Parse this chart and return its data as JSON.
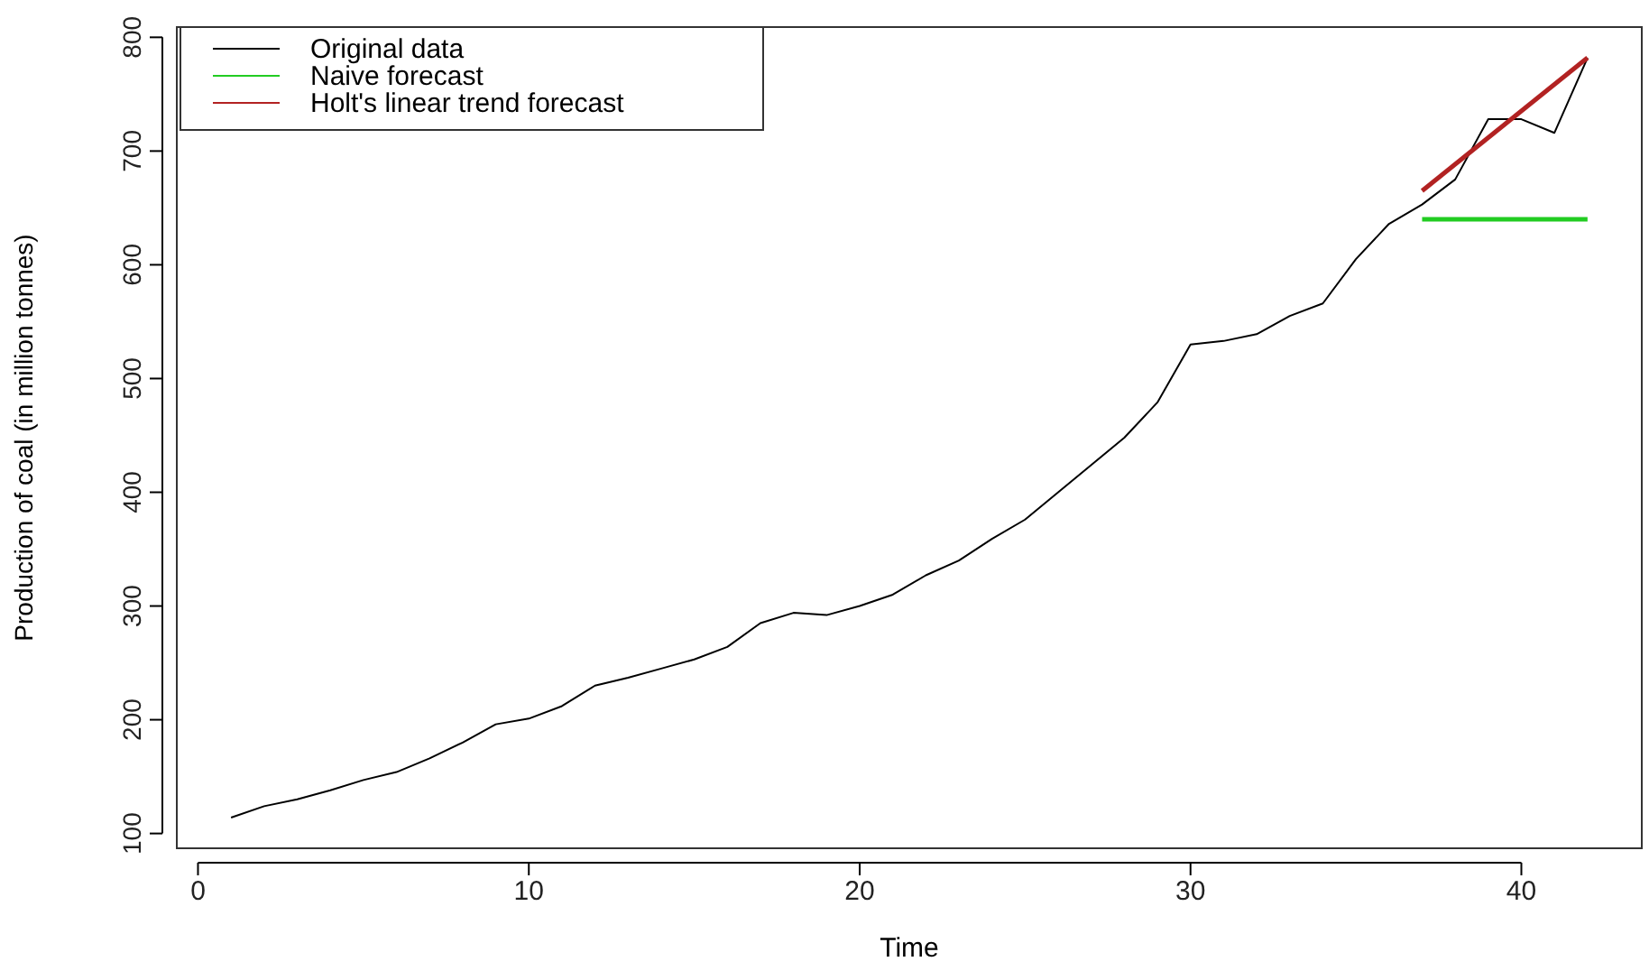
{
  "chart_data": {
    "type": "line",
    "xlabel": "Time",
    "ylabel": "Production of coal (in million tonnes)",
    "xlim": [
      -0.64,
      43.64
    ],
    "xticks": [
      0,
      10,
      20,
      30,
      40
    ],
    "ylim": [
      87,
      809
    ],
    "yticks": [
      100,
      200,
      300,
      400,
      500,
      600,
      700,
      800
    ],
    "legend": "top left",
    "grid": false,
    "series": [
      {
        "name": "Original data",
        "color": "#000000",
        "x": [
          1,
          2,
          3,
          4,
          5,
          6,
          7,
          8,
          9,
          10,
          11,
          12,
          13,
          14,
          15,
          16,
          17,
          18,
          19,
          20,
          21,
          22,
          23,
          24,
          25,
          26,
          27,
          28,
          29,
          30,
          31,
          32,
          33,
          34,
          35,
          36,
          37,
          38,
          39,
          40,
          41,
          42
        ],
        "values": [
          114,
          124,
          130,
          138,
          147,
          154,
          166,
          180,
          196,
          201,
          212,
          230,
          237,
          245,
          253,
          264,
          285,
          294,
          292,
          300,
          310,
          327,
          340,
          359,
          376,
          400,
          424,
          448,
          479,
          530,
          533,
          539,
          555,
          566,
          605,
          636,
          653,
          675,
          728,
          728,
          716,
          782
        ]
      },
      {
        "name": "Naive forecast",
        "color": "#22cc22",
        "x": [
          37,
          42
        ],
        "values": [
          640,
          640
        ]
      },
      {
        "name": "Holt's linear trend forecast",
        "color": "#b22222",
        "x": [
          37,
          42
        ],
        "values": [
          665,
          782
        ]
      }
    ]
  }
}
